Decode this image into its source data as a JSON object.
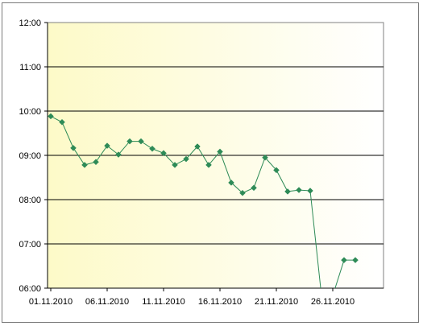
{
  "chart_data": {
    "type": "line",
    "title": "",
    "xlabel": "",
    "ylabel": "",
    "x": [
      "01.11.2010",
      "02.11.2010",
      "03.11.2010",
      "04.11.2010",
      "05.11.2010",
      "06.11.2010",
      "07.11.2010",
      "08.11.2010",
      "09.11.2010",
      "10.11.2010",
      "11.11.2010",
      "12.11.2010",
      "13.11.2010",
      "14.11.2010",
      "15.11.2010",
      "16.11.2010",
      "17.11.2010",
      "18.11.2010",
      "19.11.2010",
      "20.11.2010",
      "21.11.2010",
      "22.11.2010",
      "23.11.2010",
      "24.11.2010",
      "25.11.2010",
      "26.11.2010",
      "27.11.2010",
      "28.11.2010"
    ],
    "series": [
      {
        "color": "#2e8b57",
        "values": [
          "09:53",
          "09:45",
          "09:10",
          "08:47",
          "08:51",
          "09:13",
          "09:01",
          "09:19",
          "09:19",
          "09:09",
          "09:03",
          "08:47",
          "08:55",
          "09:12",
          "08:47",
          "09:05",
          "08:23",
          "08:09",
          "08:16",
          "08:57",
          "08:40",
          "08:11",
          "08:13",
          "08:12",
          "05:50",
          "05:50",
          "06:38",
          "06:38"
        ]
      }
    ],
    "x_tick_labels": [
      "01.11.2010",
      "06.11.2010",
      "11.11.2010",
      "16.11.2010",
      "21.11.2010",
      "26.11.2010"
    ],
    "y_tick_labels": [
      "12:00",
      "11:00",
      "10:00",
      "09:00",
      "08:00",
      "07:00",
      "06:00"
    ],
    "ylim": [
      "06:00",
      "12:00"
    ],
    "grid": "horizontal",
    "legend": "none",
    "plot_background": "yellow-to-white gradient",
    "line_color": "#2e8b57",
    "marker": "diamond"
  }
}
